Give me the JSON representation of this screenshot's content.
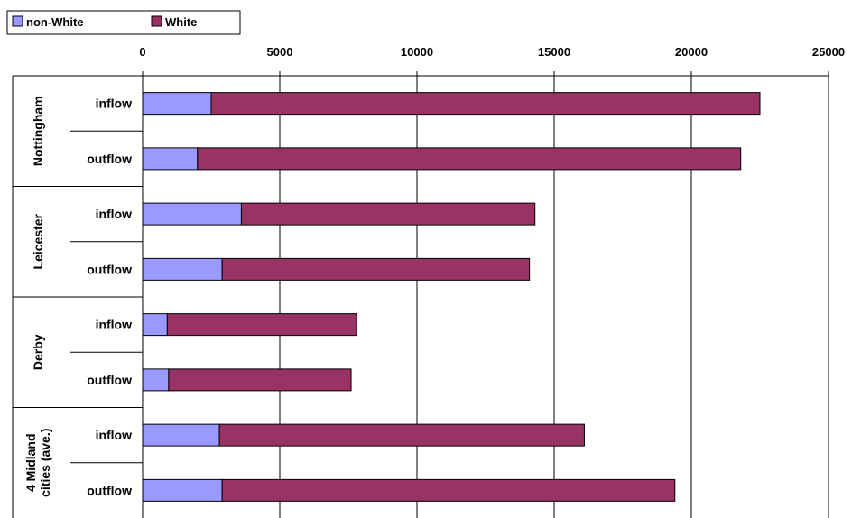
{
  "chart_data": {
    "type": "bar",
    "orientation": "horizontal",
    "stacked": true,
    "title": "",
    "xlabel": "",
    "ylabel": "",
    "xlim": [
      0,
      25000
    ],
    "x_ticks": [
      0,
      5000,
      10000,
      15000,
      20000,
      25000
    ],
    "x_axis_position": "top",
    "grid": true,
    "legend_position": "top-left",
    "groups": [
      {
        "name": "Nottingham",
        "rows": [
          {
            "label": "inflow",
            "non_white": 2500,
            "white": 20000
          },
          {
            "label": "outflow",
            "non_white": 2000,
            "white": 19800
          }
        ]
      },
      {
        "name": "Leicester",
        "rows": [
          {
            "label": "inflow",
            "non_white": 3600,
            "white": 10700
          },
          {
            "label": "outflow",
            "non_white": 2900,
            "white": 11200
          }
        ]
      },
      {
        "name": "Derby",
        "rows": [
          {
            "label": "inflow",
            "non_white": 900,
            "white": 6900
          },
          {
            "label": "outflow",
            "non_white": 950,
            "white": 6650
          }
        ]
      },
      {
        "name": "4 Midland cities (ave.)",
        "name_lines": [
          "4 Midland",
          "cities (ave.)"
        ],
        "rows": [
          {
            "label": "inflow",
            "non_white": 2800,
            "white": 13300
          },
          {
            "label": "outflow",
            "non_white": 2900,
            "white": 16500
          }
        ]
      }
    ],
    "series": [
      {
        "name": "non-White",
        "key": "non_white",
        "color": "#9999ff"
      },
      {
        "name": "White",
        "key": "white",
        "color": "#993366"
      }
    ]
  }
}
